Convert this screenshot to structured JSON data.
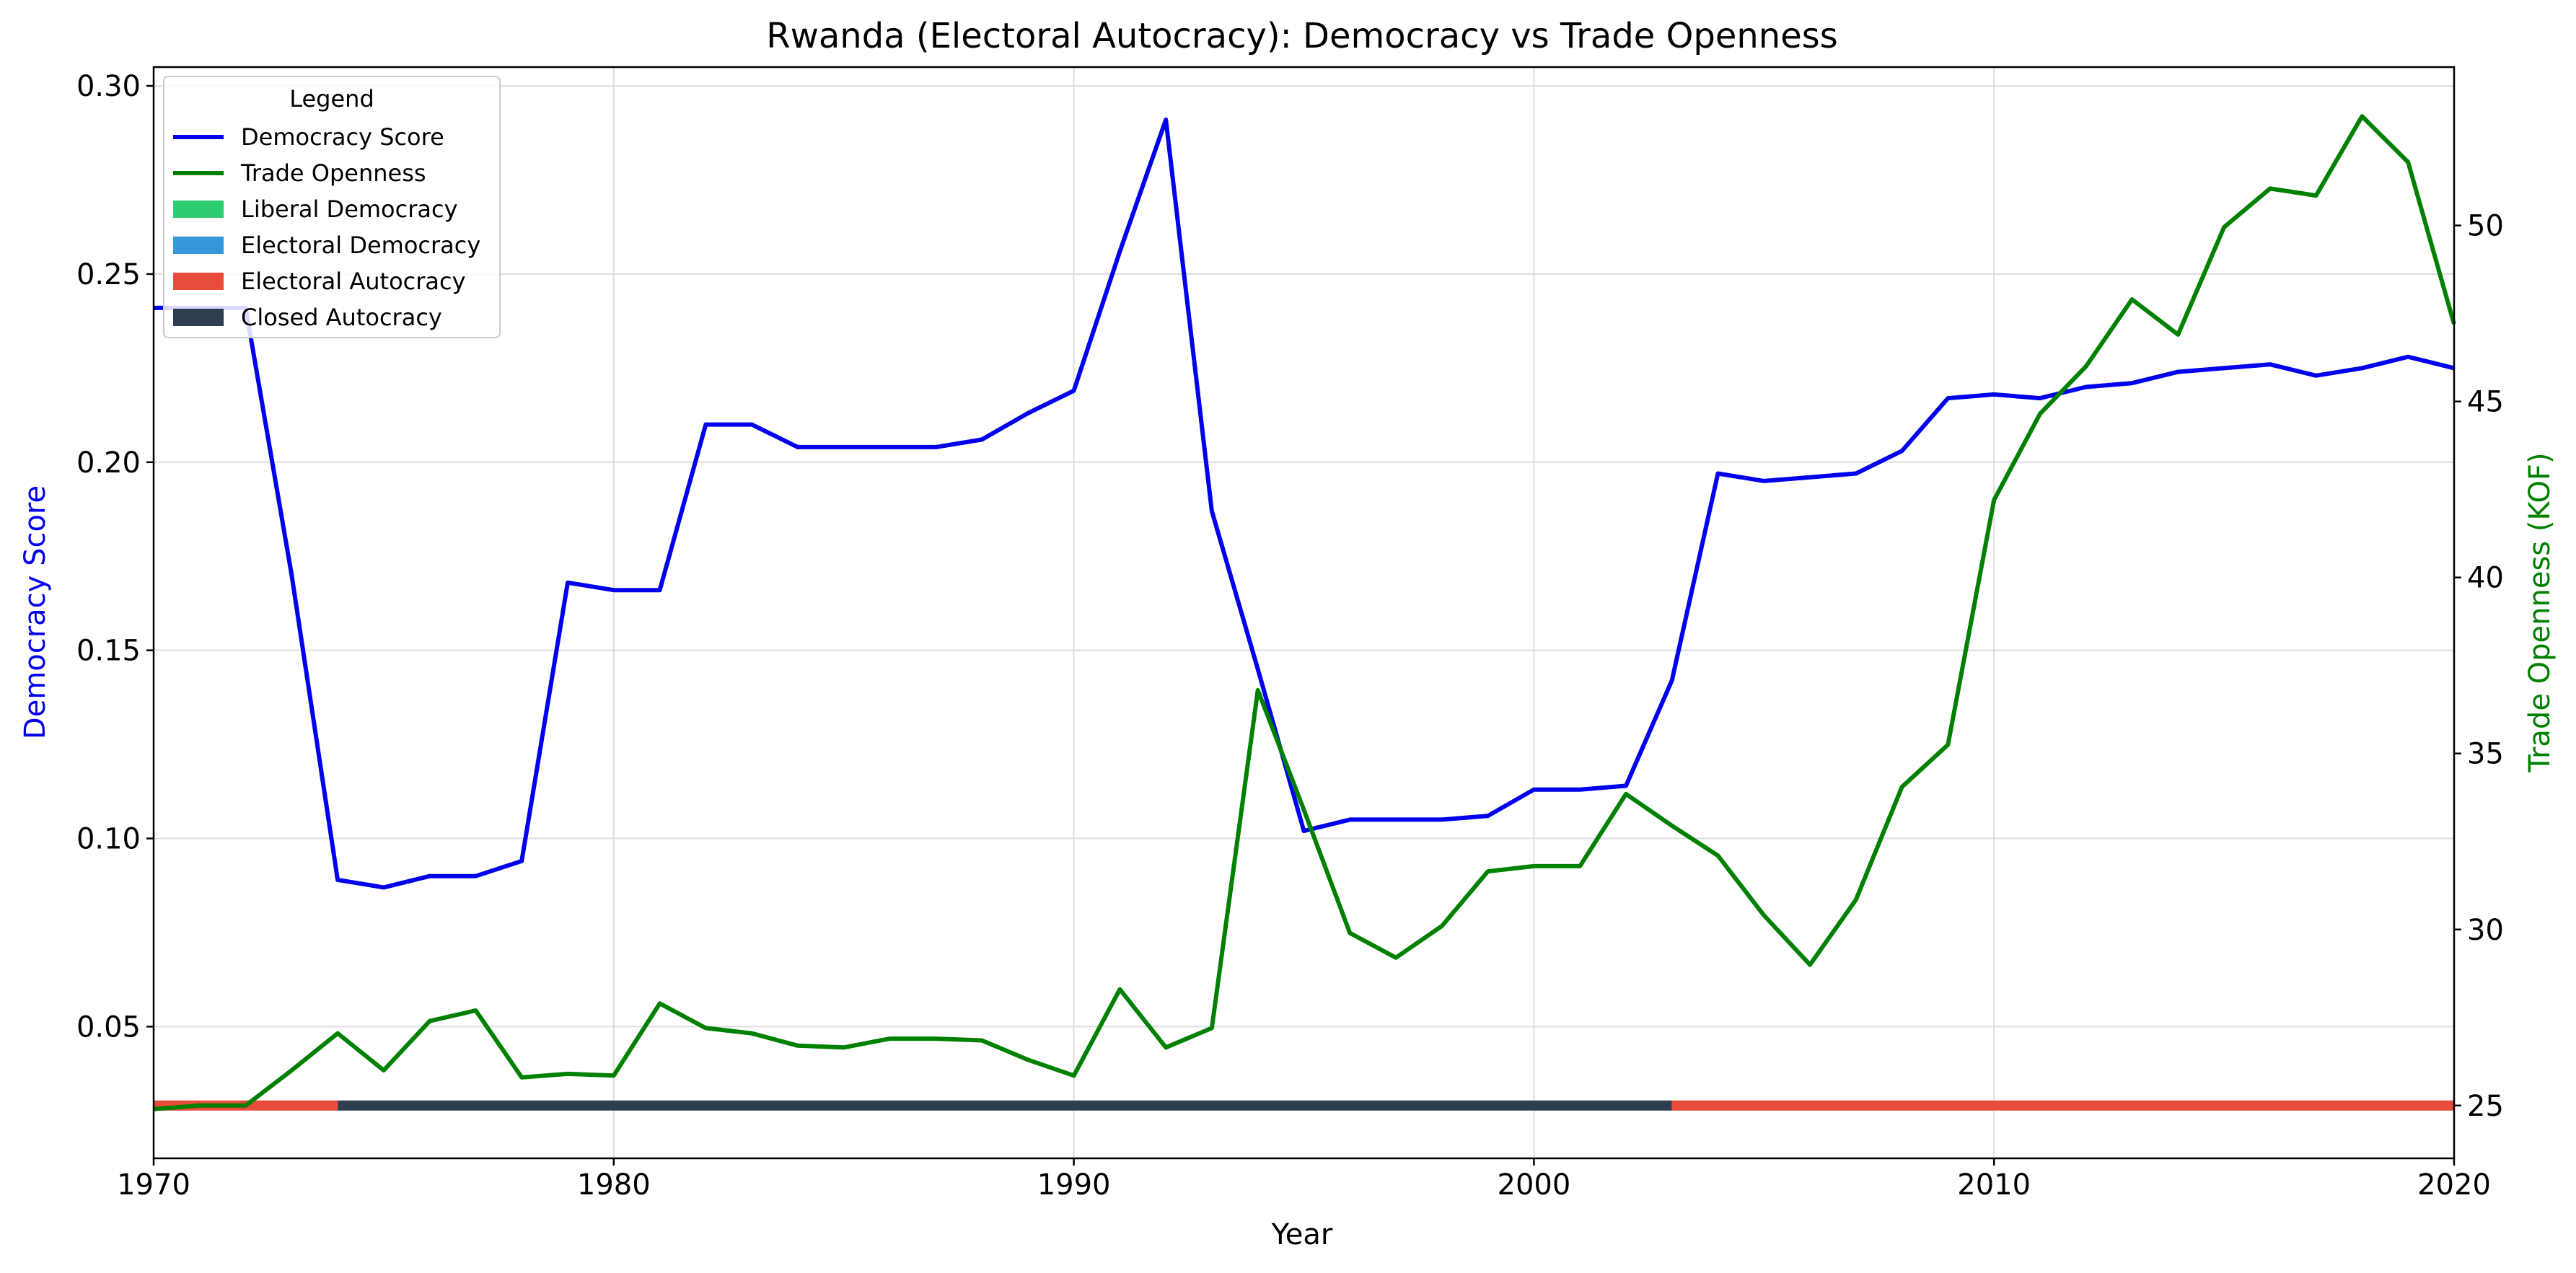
{
  "chart_data": {
    "type": "line",
    "title": "Rwanda (Electoral Autocracy): Democracy vs Trade Openness",
    "xlabel": "Year",
    "ylabel_left": "Democracy Score",
    "ylabel_right": "Trade Openness (KOF)",
    "xlim": [
      1970,
      2020
    ],
    "ylim_left": [
      0.015,
      0.305
    ],
    "ylim_right": [
      23.5,
      54.5
    ],
    "x_ticks": [
      "1970",
      "1980",
      "1990",
      "2000",
      "2010",
      "2020"
    ],
    "y_left_ticks": [
      "0.05",
      "0.10",
      "0.15",
      "0.20",
      "0.25",
      "0.30"
    ],
    "y_right_ticks": [
      "25",
      "30",
      "35",
      "40",
      "45",
      "50"
    ],
    "grid": true,
    "legend_title": "Legend",
    "legend_position": "top-left",
    "years": [
      1970,
      1971,
      1972,
      1973,
      1974,
      1975,
      1976,
      1977,
      1978,
      1979,
      1980,
      1981,
      1982,
      1983,
      1984,
      1985,
      1986,
      1987,
      1988,
      1989,
      1990,
      1991,
      1992,
      1993,
      1994,
      1995,
      1996,
      1997,
      1998,
      1999,
      2000,
      2001,
      2002,
      2003,
      2004,
      2005,
      2006,
      2007,
      2008,
      2009,
      2010,
      2011,
      2012,
      2013,
      2014,
      2015,
      2016,
      2017,
      2018,
      2019,
      2020
    ],
    "series": [
      {
        "name": "Democracy Score",
        "axis": "left",
        "color": "#0000ee",
        "values": [
          0.241,
          0.241,
          0.241,
          0.17,
          0.089,
          0.087,
          0.09,
          0.09,
          0.094,
          0.168,
          0.166,
          0.166,
          0.21,
          0.21,
          0.204,
          0.204,
          0.204,
          0.204,
          0.206,
          0.213,
          0.219,
          0.256,
          0.291,
          0.187,
          0.145,
          0.102,
          0.105,
          0.105,
          0.105,
          0.106,
          0.113,
          0.113,
          0.114,
          0.142,
          0.197,
          0.195,
          0.196,
          0.197,
          0.203,
          0.217,
          0.218,
          0.217,
          0.22,
          0.221,
          0.224,
          0.225,
          0.226,
          0.223,
          0.225,
          0.228,
          0.225
        ]
      },
      {
        "name": "Trade Openness",
        "axis": "right",
        "color": "#008000",
        "values": [
          24.9,
          25.0,
          25.0,
          26.0,
          27.05,
          26.0,
          27.4,
          27.7,
          25.8,
          25.9,
          25.85,
          27.9,
          27.2,
          27.05,
          26.7,
          26.65,
          26.9,
          26.9,
          26.85,
          26.3,
          25.85,
          28.3,
          26.65,
          27.2,
          36.8,
          33.4,
          29.9,
          29.2,
          30.1,
          31.65,
          31.8,
          31.8,
          33.85,
          32.95,
          32.1,
          30.4,
          29.0,
          30.85,
          34.05,
          35.25,
          42.2,
          44.65,
          46.0,
          47.9,
          46.9,
          49.95,
          51.05,
          50.85,
          53.1,
          51.8,
          47.2
        ]
      }
    ],
    "regime_legend": [
      {
        "name": "Liberal Democracy",
        "color": "#2ecc71"
      },
      {
        "name": "Electoral Democracy",
        "color": "#3498db"
      },
      {
        "name": "Electoral Autocracy",
        "color": "#e74c3c"
      },
      {
        "name": "Closed Autocracy",
        "color": "#2c3e50"
      }
    ],
    "regime_bar": [
      {
        "regime": "Electoral Autocracy",
        "start": 1970,
        "end": 1974
      },
      {
        "regime": "Closed Autocracy",
        "start": 1974,
        "end": 2003
      },
      {
        "regime": "Electoral Autocracy",
        "start": 2003,
        "end": 2020
      }
    ]
  }
}
